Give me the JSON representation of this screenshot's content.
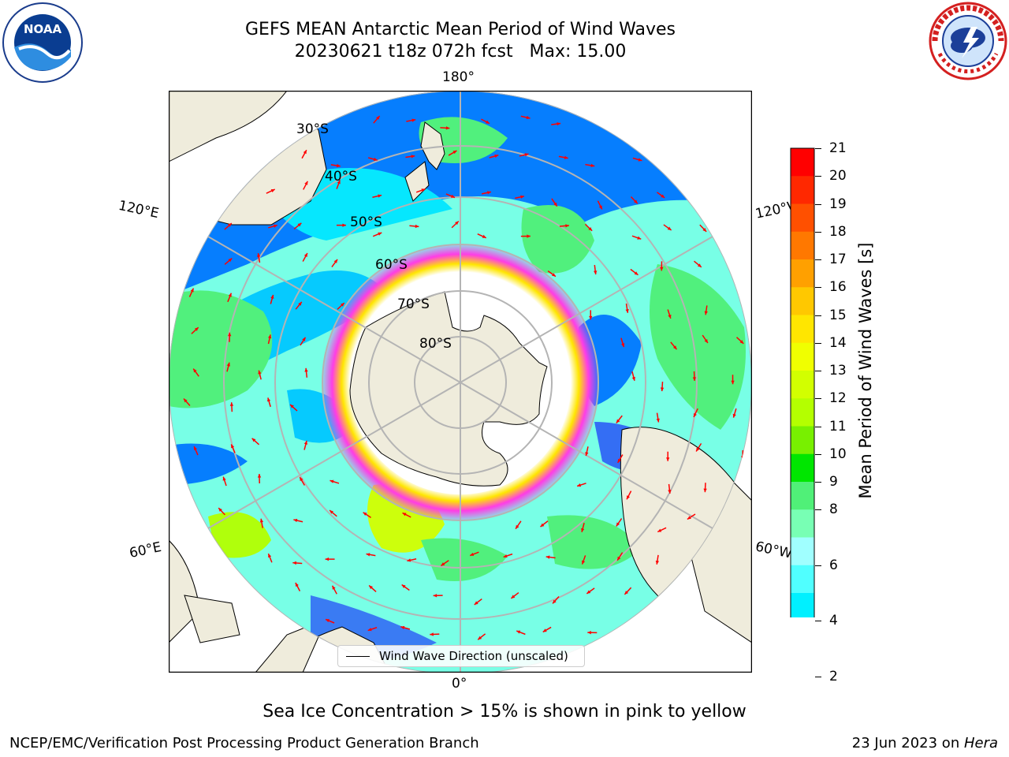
{
  "header": {
    "title_line1": "GEFS MEAN Antarctic Mean Period of Wind Waves",
    "title_line2": "20230621 t18z 072h fcst   Max: 15.00"
  },
  "logos": {
    "left": {
      "icon": "noaa-logo-icon",
      "text": "NOAA"
    },
    "right": {
      "icon": "national-weather-service-logo-icon"
    }
  },
  "map": {
    "projection": "south-polar-stereographic",
    "longitude_labels": [
      "180°",
      "120°E",
      "120°W",
      "60°E",
      "60°W",
      "0°"
    ],
    "latitude_labels": [
      "30°S",
      "40°S",
      "50°S",
      "60°S",
      "70°S",
      "80°S"
    ],
    "legend_label": "Wind Wave Direction (unscaled)",
    "colors": {
      "land": "#efecdc",
      "sea_ice_low": "#ff3ce6",
      "sea_ice_high": "#ffe600",
      "arrows": "#ff0000",
      "grid": "#b4b4b4"
    }
  },
  "colorbar": {
    "title": "Mean Period of Wind Waves [s]",
    "ticks": [
      "21",
      "20",
      "19",
      "18",
      "17",
      "16",
      "15",
      "14",
      "13",
      "12",
      "11",
      "10",
      "9",
      "8",
      "7",
      "6",
      "5",
      "4",
      "3",
      "2"
    ],
    "tick_labels": [
      "21",
      "20",
      "19",
      "18",
      "17",
      "16",
      "15",
      "14",
      "13",
      "12",
      "11",
      "10",
      "9",
      "8",
      "6",
      "4",
      "2"
    ],
    "bin_colors": [
      "#ff0000",
      "#ff2800",
      "#ff5000",
      "#ff7800",
      "#ffa000",
      "#ffc800",
      "#ffe600",
      "#f0ff00",
      "#d2ff00",
      "#b4ff00",
      "#78f000",
      "#00e600",
      "#50f078",
      "#78ffb4",
      "#a0ffff",
      "#50ffff",
      "#00f0ff",
      "#00c8ff",
      "#0078ff"
    ],
    "extend_color": "#0000ff",
    "extend": "min"
  },
  "footer": {
    "note": "Sea Ice Concentration > 15% is shown in pink to yellow",
    "credit_left": "NCEP/EMC/Verification Post Processing Product Generation Branch",
    "credit_date": "23 Jun 2023 on ",
    "credit_machine": "Hera"
  }
}
